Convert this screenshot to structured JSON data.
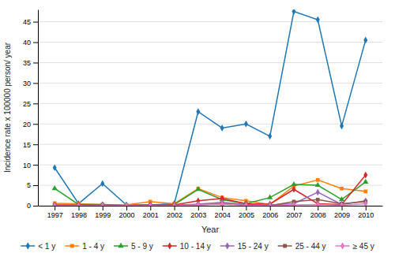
{
  "chart_data": {
    "type": "line",
    "x_label": "Year",
    "y_label": "Incidence rate x 100000 person/ year",
    "x": [
      1997,
      1998,
      1999,
      2000,
      2001,
      2002,
      2003,
      2004,
      2005,
      2006,
      2007,
      2008,
      2009,
      2010
    ],
    "series": [
      {
        "name": "< 1 y",
        "marker": "diamond",
        "values": [
          9.3,
          0.5,
          5.4,
          0.2,
          0.2,
          0.5,
          23.0,
          19.0,
          20.0,
          17.0,
          47.5,
          45.5,
          19.5,
          40.5
        ]
      },
      {
        "name": "1 - 4 y",
        "marker": "square",
        "values": [
          0.6,
          0.5,
          0.3,
          0.2,
          1.0,
          0.5,
          4.2,
          2.0,
          1.2,
          0.3,
          4.8,
          6.3,
          4.2,
          3.5
        ]
      },
      {
        "name": "5 - 9 y",
        "marker": "triangle",
        "values": [
          4.2,
          0.3,
          0.3,
          0.1,
          0.2,
          0.3,
          4.0,
          1.5,
          0.5,
          2.0,
          5.2,
          5.0,
          1.5,
          5.8
        ]
      },
      {
        "name": "10 - 14 y",
        "marker": "diamond",
        "values": [
          0.2,
          0.2,
          0.1,
          0.0,
          0.2,
          0.2,
          1.2,
          1.8,
          0.5,
          0.4,
          4.0,
          0.5,
          0.3,
          7.5
        ]
      },
      {
        "name": "15 - 24 y",
        "marker": "diamond",
        "values": [
          0.1,
          0.1,
          0.0,
          0.0,
          0.0,
          0.1,
          0.4,
          0.8,
          0.3,
          0.2,
          0.5,
          3.3,
          0.3,
          1.2
        ]
      },
      {
        "name": "25 - 44 y",
        "marker": "square",
        "values": [
          0.1,
          0.0,
          0.0,
          0.0,
          0.0,
          0.1,
          0.2,
          0.5,
          0.2,
          0.0,
          1.0,
          1.5,
          0.5,
          1.0
        ]
      },
      {
        "name": "≥ 45 y",
        "marker": "diamond",
        "values": [
          0.0,
          0.0,
          0.0,
          0.0,
          0.0,
          0.0,
          0.2,
          0.4,
          0.1,
          0.0,
          0.2,
          0.3,
          0.1,
          0.5
        ]
      }
    ],
    "xlim": [
      1996.3,
      2010.7
    ],
    "xticks": [
      1997,
      1998,
      1999,
      2000,
      2001,
      2002,
      2003,
      2004,
      2005,
      2006,
      2007,
      2008,
      2009,
      2010
    ],
    "ylim": [
      0,
      48
    ],
    "yticks": [
      0,
      5,
      10,
      15,
      20,
      25,
      30,
      35,
      40,
      45
    ],
    "grid": true,
    "legend": "bottom"
  }
}
